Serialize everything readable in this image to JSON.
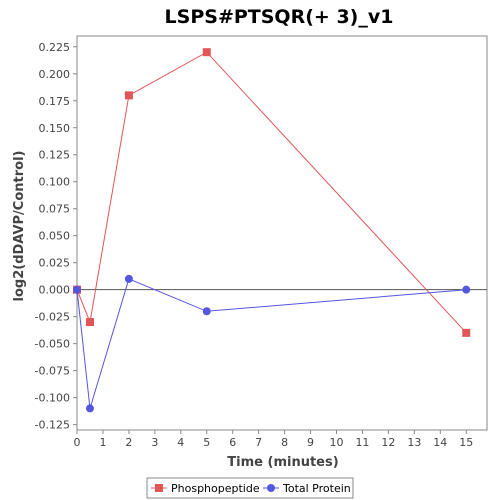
{
  "chart_data": {
    "type": "line",
    "title": "LSPS#PTSQR(+ 3)_v1",
    "xlabel": "Time (minutes)",
    "ylabel": "log2(dDAVP/Control)",
    "xlim": [
      0,
      15.8
    ],
    "ylim": [
      -0.13,
      0.235
    ],
    "xticks": [
      "0",
      "1",
      "2",
      "3",
      "4",
      "5",
      "6",
      "7",
      "8",
      "9",
      "10",
      "11",
      "12",
      "13",
      "14",
      "15"
    ],
    "yticks": [
      "0.225",
      "0.200",
      "0.175",
      "0.150",
      "0.125",
      "0.100",
      "0.075",
      "0.050",
      "0.025",
      "0.000",
      "-0.025",
      "-0.050",
      "-0.075",
      "-0.100",
      "-0.125"
    ],
    "grid": false,
    "zero_line": true,
    "legend_position": "bottom",
    "series": [
      {
        "name": "Phosphopeptide",
        "color": "#e05555",
        "marker": "square",
        "x": [
          0,
          0.5,
          2,
          5,
          15
        ],
        "y": [
          0.0,
          -0.03,
          0.18,
          0.22,
          -0.04
        ]
      },
      {
        "name": "Total Protein",
        "color": "#5555e0",
        "marker": "circle",
        "x": [
          0,
          0.5,
          2,
          5,
          15
        ],
        "y": [
          0.0,
          -0.11,
          0.01,
          -0.02,
          0.0
        ]
      }
    ]
  }
}
